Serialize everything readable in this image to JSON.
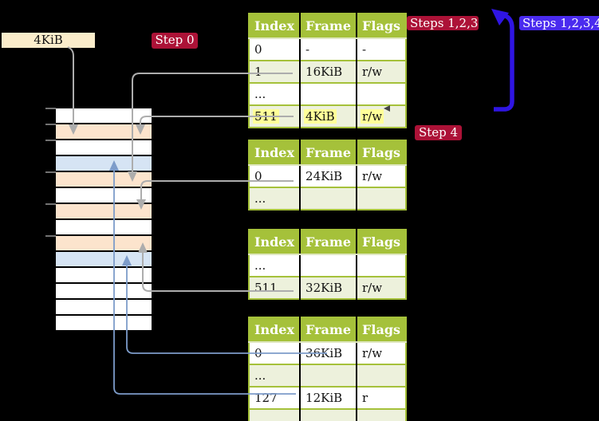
{
  "labels": {
    "page_size_box": "4KiB",
    "step0": "Step 0",
    "steps123": "Steps 1,2,3",
    "steps1234": "Steps 1,2,3,4",
    "step4": "Step 4"
  },
  "tables": [
    {
      "headers": [
        "Index",
        "Frame",
        "Flags"
      ],
      "rows": [
        {
          "cells": [
            "0",
            "-",
            "-"
          ]
        },
        {
          "cells": [
            "1",
            "16KiB",
            "r/w"
          ]
        },
        {
          "cells": [
            "...",
            "",
            ""
          ]
        },
        {
          "cells": [
            "511",
            "4KiB",
            "r/w"
          ]
        }
      ]
    },
    {
      "headers": [
        "Index",
        "Frame",
        "Flags"
      ],
      "rows": [
        {
          "cells": [
            "0",
            "24KiB",
            "r/w"
          ]
        },
        {
          "cells": [
            "...",
            "",
            ""
          ]
        }
      ]
    },
    {
      "headers": [
        "Index",
        "Frame",
        "Flags"
      ],
      "rows": [
        {
          "cells": [
            "...",
            "",
            ""
          ]
        },
        {
          "cells": [
            "511",
            "32KiB",
            "r/w"
          ]
        }
      ]
    },
    {
      "headers": [
        "Index",
        "Frame",
        "Flags"
      ],
      "rows": [
        {
          "cells": [
            "0",
            "36KiB",
            "r/w"
          ]
        },
        {
          "cells": [
            "...",
            "",
            ""
          ]
        },
        {
          "cells": [
            "127",
            "12KiB",
            "r"
          ]
        },
        {
          "cells": [
            "...",
            "",
            ""
          ]
        }
      ]
    }
  ],
  "memory": {
    "rows": [
      "white",
      "peach",
      "white",
      "blue",
      "peach",
      "white",
      "peach",
      "white",
      "peach",
      "blue",
      "white",
      "white",
      "white",
      "white"
    ]
  },
  "colors": {
    "background": "#000000",
    "crimson_label_bg": "#AC1237",
    "blue_label_bg": "#4A2BEF",
    "table_header_green": "#A5C13A",
    "table_row_light_green": "#EDF1DC",
    "highlight_yellow": "#FFFF99",
    "beige_box_bg": "#FBEDCB",
    "memory_peach": "#FCE4CD",
    "memory_blue": "#D6E4F4",
    "gray_arrow": "#ADADAD",
    "thin_blue_arrow": "#7D9CCA",
    "thick_blue_arrow": "#2F15E3"
  }
}
